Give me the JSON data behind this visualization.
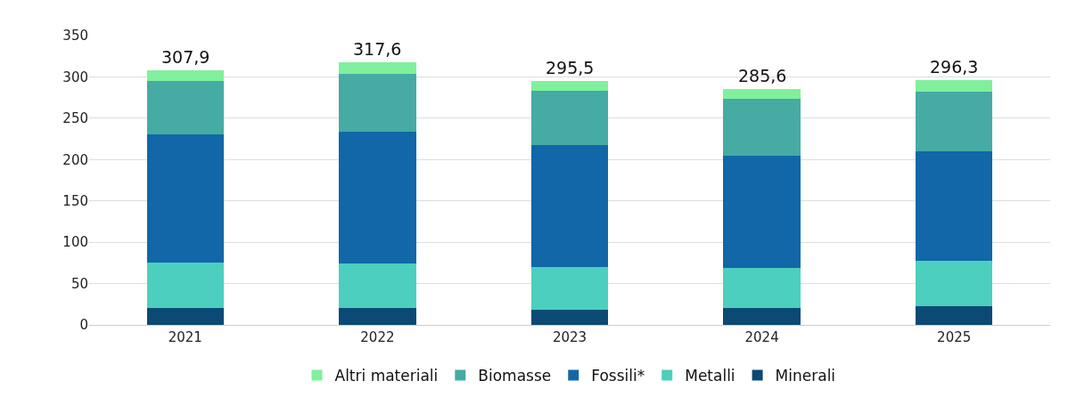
{
  "chart_data": {
    "type": "bar",
    "stacked": true,
    "categories": [
      "2021",
      "2022",
      "2023",
      "2024",
      "2025"
    ],
    "series": [
      {
        "name": "Minerali",
        "color": "#0b4a74",
        "values": [
          20.0,
          20.0,
          18.7,
          20.3,
          23.1
        ]
      },
      {
        "name": "Metalli",
        "color": "#4ccfbf",
        "values": [
          55.4,
          54.2,
          50.9,
          48.5,
          54.5
        ]
      },
      {
        "name": "Fossili*",
        "color": "#1167a8",
        "values": [
          155.0,
          159.5,
          147.6,
          136.1,
          132.0
        ]
      },
      {
        "name": "Biomasse",
        "color": "#45aba3",
        "values": [
          64.3,
          70.1,
          66.0,
          68.8,
          72.4
        ]
      },
      {
        "name": "Altri materiali",
        "color": "#80f09d",
        "values": [
          13.2,
          13.8,
          12.3,
          11.9,
          14.3
        ]
      }
    ],
    "totals": [
      "307,9",
      "317,6",
      "295,5",
      "285,6",
      "296,3"
    ],
    "ylim": [
      0,
      350
    ],
    "yticks": [
      0,
      50,
      100,
      150,
      200,
      250,
      300,
      350
    ],
    "grid": "y",
    "legend": "bottom"
  }
}
